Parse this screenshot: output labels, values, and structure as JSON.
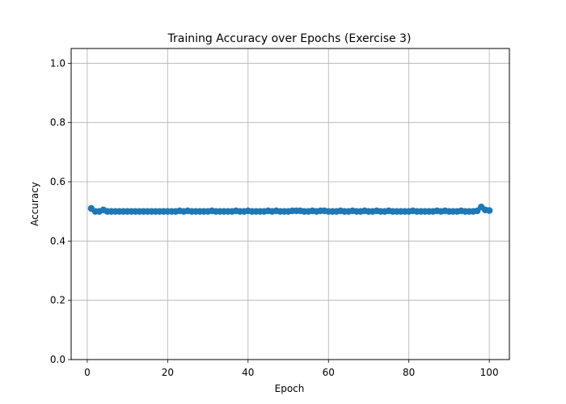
{
  "chart_data": {
    "type": "line",
    "title": "Training Accuracy over Epochs (Exercise 3)",
    "xlabel": "Epoch",
    "ylabel": "Accuracy",
    "xlim": [
      -4,
      105
    ],
    "ylim": [
      0.0,
      1.05
    ],
    "xticks": [
      0,
      20,
      40,
      60,
      80,
      100
    ],
    "xtick_labels": [
      "0",
      "20",
      "40",
      "60",
      "80",
      "100"
    ],
    "yticks": [
      0.0,
      0.2,
      0.4,
      0.6,
      0.8,
      1.0
    ],
    "ytick_labels": [
      "0.0",
      "0.2",
      "0.4",
      "0.6",
      "0.8",
      "1.0"
    ],
    "grid": true,
    "marker": "circle",
    "colors": {
      "series": "#1f77b4",
      "grid": "#b0b0b0",
      "axis": "#000000"
    },
    "series": [
      {
        "x": [
          1,
          2,
          3,
          4,
          5,
          6,
          7,
          8,
          9,
          10,
          11,
          12,
          13,
          14,
          15,
          16,
          17,
          18,
          19,
          20,
          21,
          22,
          23,
          24,
          25,
          26,
          27,
          28,
          29,
          30,
          31,
          32,
          33,
          34,
          35,
          36,
          37,
          38,
          39,
          40,
          41,
          42,
          43,
          44,
          45,
          46,
          47,
          48,
          49,
          50,
          51,
          52,
          53,
          54,
          55,
          56,
          57,
          58,
          59,
          60,
          61,
          62,
          63,
          64,
          65,
          66,
          67,
          68,
          69,
          70,
          71,
          72,
          73,
          74,
          75,
          76,
          77,
          78,
          79,
          80,
          81,
          82,
          83,
          84,
          85,
          86,
          87,
          88,
          89,
          90,
          91,
          92,
          93,
          94,
          95,
          96,
          97,
          98,
          99,
          100
        ],
        "values": [
          0.51,
          0.5,
          0.5,
          0.505,
          0.5,
          0.5,
          0.5,
          0.5,
          0.5,
          0.5,
          0.5,
          0.5,
          0.5,
          0.5,
          0.5,
          0.5,
          0.5,
          0.5,
          0.5,
          0.5,
          0.5,
          0.5,
          0.502,
          0.5,
          0.502,
          0.5,
          0.5,
          0.5,
          0.5,
          0.5,
          0.502,
          0.5,
          0.5,
          0.5,
          0.5,
          0.5,
          0.502,
          0.5,
          0.5,
          0.502,
          0.5,
          0.5,
          0.5,
          0.5,
          0.502,
          0.5,
          0.502,
          0.5,
          0.5,
          0.5,
          0.502,
          0.502,
          0.502,
          0.5,
          0.5,
          0.502,
          0.5,
          0.502,
          0.502,
          0.5,
          0.5,
          0.5,
          0.502,
          0.5,
          0.5,
          0.502,
          0.5,
          0.5,
          0.502,
          0.5,
          0.5,
          0.502,
          0.5,
          0.5,
          0.502,
          0.5,
          0.5,
          0.5,
          0.5,
          0.5,
          0.502,
          0.5,
          0.5,
          0.5,
          0.5,
          0.5,
          0.502,
          0.5,
          0.502,
          0.5,
          0.5,
          0.5,
          0.502,
          0.5,
          0.5,
          0.5,
          0.502,
          0.515,
          0.505,
          0.503
        ]
      }
    ]
  }
}
